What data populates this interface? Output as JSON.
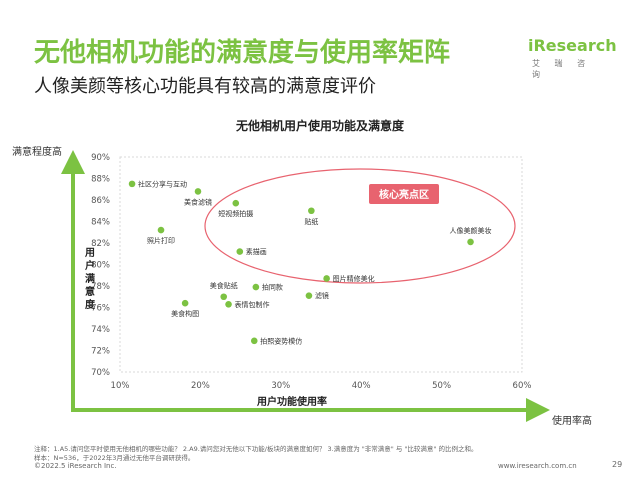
{
  "header": {
    "title": "无他相机功能的满意度与使用率矩阵",
    "subtitle": "人像美颜等核心功能具有较高的满意度评价",
    "logo_brand": "iResearch",
    "logo_cn": "艾 瑞 咨 询"
  },
  "colors": {
    "accent": "#7cc242",
    "highlight": "#e8636f"
  },
  "chart_data": {
    "type": "scatter",
    "title": "无他相机用户使用功能及满意度",
    "xlabel": "用户功能使用率",
    "ylabel": "用户满意度",
    "x_arrow_label": "使用率高",
    "y_arrow_label": "满意程度高",
    "xlim": [
      0.1,
      0.6
    ],
    "ylim": [
      0.7,
      0.9
    ],
    "x_ticks": [
      {
        "v": 0.1,
        "label": "10%"
      },
      {
        "v": 0.2,
        "label": "20%"
      },
      {
        "v": 0.3,
        "label": "30%"
      },
      {
        "v": 0.4,
        "label": "40%"
      },
      {
        "v": 0.5,
        "label": "50%"
      },
      {
        "v": 0.6,
        "label": "60%"
      }
    ],
    "y_ticks": [
      {
        "v": 0.7,
        "label": "70%"
      },
      {
        "v": 0.72,
        "label": "72%"
      },
      {
        "v": 0.74,
        "label": "74%"
      },
      {
        "v": 0.76,
        "label": "76%"
      },
      {
        "v": 0.78,
        "label": "78%"
      },
      {
        "v": 0.8,
        "label": "80%"
      },
      {
        "v": 0.82,
        "label": "82%"
      },
      {
        "v": 0.84,
        "label": "84%"
      },
      {
        "v": 0.86,
        "label": "86%"
      },
      {
        "v": 0.88,
        "label": "88%"
      },
      {
        "v": 0.9,
        "label": "90%"
      }
    ],
    "points": [
      {
        "label": "社区分享与互动",
        "x": 0.115,
        "y": 0.875,
        "anchor": "right"
      },
      {
        "label": "美食滤镜",
        "x": 0.197,
        "y": 0.868,
        "anchor": "below"
      },
      {
        "label": "短视频拍摄",
        "x": 0.244,
        "y": 0.857,
        "anchor": "below"
      },
      {
        "label": "贴纸",
        "x": 0.338,
        "y": 0.85,
        "anchor": "below"
      },
      {
        "label": "照片打印",
        "x": 0.151,
        "y": 0.832,
        "anchor": "below"
      },
      {
        "label": "人像美颜美妆",
        "x": 0.536,
        "y": 0.821,
        "anchor": "above"
      },
      {
        "label": "素描画",
        "x": 0.249,
        "y": 0.812,
        "anchor": "right"
      },
      {
        "label": "图片精修美化",
        "x": 0.357,
        "y": 0.787,
        "anchor": "right"
      },
      {
        "label": "美食贴纸",
        "x": 0.229,
        "y": 0.77,
        "anchor": "above"
      },
      {
        "label": "拍同款",
        "x": 0.269,
        "y": 0.779,
        "anchor": "right"
      },
      {
        "label": "滤镜",
        "x": 0.335,
        "y": 0.771,
        "anchor": "right"
      },
      {
        "label": "表情包制作",
        "x": 0.235,
        "y": 0.763,
        "anchor": "right"
      },
      {
        "label": "美食构图",
        "x": 0.181,
        "y": 0.764,
        "anchor": "below"
      },
      {
        "label": "拍照姿势模仿",
        "x": 0.267,
        "y": 0.729,
        "anchor": "right"
      }
    ],
    "highlight_label": "核心亮点区"
  },
  "footer": {
    "note1": "注释：1.A5.请问您平时使用无他相机的哪些功能？ 2.A9.请问您对无他以下功能/板块的满意度如何？ 3.满意度为 \"非常满意\" 与 \"比较满意\" 的比例之和。",
    "note2": "样本：N=536，于2022年3月通过无他平台调研获得。",
    "copyright": "©2022.5 iResearch Inc.",
    "website": "www.iresearch.com.cn",
    "page": "29"
  }
}
